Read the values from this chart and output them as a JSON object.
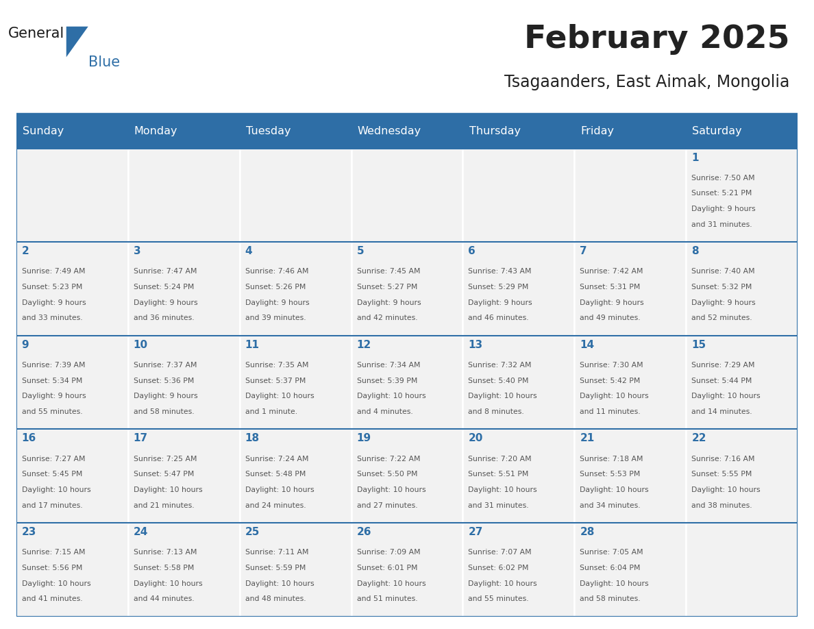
{
  "title": "February 2025",
  "subtitle": "Tsagaanders, East Aimak, Mongolia",
  "header_bg_color": "#2E6EA6",
  "header_text_color": "#FFFFFF",
  "cell_bg_color": "#F2F2F2",
  "border_color": "#2E6EA6",
  "title_color": "#222222",
  "subtitle_color": "#222222",
  "day_number_color": "#2E6EA6",
  "cell_text_color": "#555555",
  "days_of_week": [
    "Sunday",
    "Monday",
    "Tuesday",
    "Wednesday",
    "Thursday",
    "Friday",
    "Saturday"
  ],
  "weeks": [
    [
      {
        "day": null,
        "info": null
      },
      {
        "day": null,
        "info": null
      },
      {
        "day": null,
        "info": null
      },
      {
        "day": null,
        "info": null
      },
      {
        "day": null,
        "info": null
      },
      {
        "day": null,
        "info": null
      },
      {
        "day": 1,
        "info": "Sunrise: 7:50 AM\nSunset: 5:21 PM\nDaylight: 9 hours\nand 31 minutes."
      }
    ],
    [
      {
        "day": 2,
        "info": "Sunrise: 7:49 AM\nSunset: 5:23 PM\nDaylight: 9 hours\nand 33 minutes."
      },
      {
        "day": 3,
        "info": "Sunrise: 7:47 AM\nSunset: 5:24 PM\nDaylight: 9 hours\nand 36 minutes."
      },
      {
        "day": 4,
        "info": "Sunrise: 7:46 AM\nSunset: 5:26 PM\nDaylight: 9 hours\nand 39 minutes."
      },
      {
        "day": 5,
        "info": "Sunrise: 7:45 AM\nSunset: 5:27 PM\nDaylight: 9 hours\nand 42 minutes."
      },
      {
        "day": 6,
        "info": "Sunrise: 7:43 AM\nSunset: 5:29 PM\nDaylight: 9 hours\nand 46 minutes."
      },
      {
        "day": 7,
        "info": "Sunrise: 7:42 AM\nSunset: 5:31 PM\nDaylight: 9 hours\nand 49 minutes."
      },
      {
        "day": 8,
        "info": "Sunrise: 7:40 AM\nSunset: 5:32 PM\nDaylight: 9 hours\nand 52 minutes."
      }
    ],
    [
      {
        "day": 9,
        "info": "Sunrise: 7:39 AM\nSunset: 5:34 PM\nDaylight: 9 hours\nand 55 minutes."
      },
      {
        "day": 10,
        "info": "Sunrise: 7:37 AM\nSunset: 5:36 PM\nDaylight: 9 hours\nand 58 minutes."
      },
      {
        "day": 11,
        "info": "Sunrise: 7:35 AM\nSunset: 5:37 PM\nDaylight: 10 hours\nand 1 minute."
      },
      {
        "day": 12,
        "info": "Sunrise: 7:34 AM\nSunset: 5:39 PM\nDaylight: 10 hours\nand 4 minutes."
      },
      {
        "day": 13,
        "info": "Sunrise: 7:32 AM\nSunset: 5:40 PM\nDaylight: 10 hours\nand 8 minutes."
      },
      {
        "day": 14,
        "info": "Sunrise: 7:30 AM\nSunset: 5:42 PM\nDaylight: 10 hours\nand 11 minutes."
      },
      {
        "day": 15,
        "info": "Sunrise: 7:29 AM\nSunset: 5:44 PM\nDaylight: 10 hours\nand 14 minutes."
      }
    ],
    [
      {
        "day": 16,
        "info": "Sunrise: 7:27 AM\nSunset: 5:45 PM\nDaylight: 10 hours\nand 17 minutes."
      },
      {
        "day": 17,
        "info": "Sunrise: 7:25 AM\nSunset: 5:47 PM\nDaylight: 10 hours\nand 21 minutes."
      },
      {
        "day": 18,
        "info": "Sunrise: 7:24 AM\nSunset: 5:48 PM\nDaylight: 10 hours\nand 24 minutes."
      },
      {
        "day": 19,
        "info": "Sunrise: 7:22 AM\nSunset: 5:50 PM\nDaylight: 10 hours\nand 27 minutes."
      },
      {
        "day": 20,
        "info": "Sunrise: 7:20 AM\nSunset: 5:51 PM\nDaylight: 10 hours\nand 31 minutes."
      },
      {
        "day": 21,
        "info": "Sunrise: 7:18 AM\nSunset: 5:53 PM\nDaylight: 10 hours\nand 34 minutes."
      },
      {
        "day": 22,
        "info": "Sunrise: 7:16 AM\nSunset: 5:55 PM\nDaylight: 10 hours\nand 38 minutes."
      }
    ],
    [
      {
        "day": 23,
        "info": "Sunrise: 7:15 AM\nSunset: 5:56 PM\nDaylight: 10 hours\nand 41 minutes."
      },
      {
        "day": 24,
        "info": "Sunrise: 7:13 AM\nSunset: 5:58 PM\nDaylight: 10 hours\nand 44 minutes."
      },
      {
        "day": 25,
        "info": "Sunrise: 7:11 AM\nSunset: 5:59 PM\nDaylight: 10 hours\nand 48 minutes."
      },
      {
        "day": 26,
        "info": "Sunrise: 7:09 AM\nSunset: 6:01 PM\nDaylight: 10 hours\nand 51 minutes."
      },
      {
        "day": 27,
        "info": "Sunrise: 7:07 AM\nSunset: 6:02 PM\nDaylight: 10 hours\nand 55 minutes."
      },
      {
        "day": 28,
        "info": "Sunrise: 7:05 AM\nSunset: 6:04 PM\nDaylight: 10 hours\nand 58 minutes."
      },
      {
        "day": null,
        "info": null
      }
    ]
  ],
  "logo_general_color": "#1a1a1a",
  "logo_blue_color": "#2E6EA6",
  "fig_width": 11.88,
  "fig_height": 9.18
}
